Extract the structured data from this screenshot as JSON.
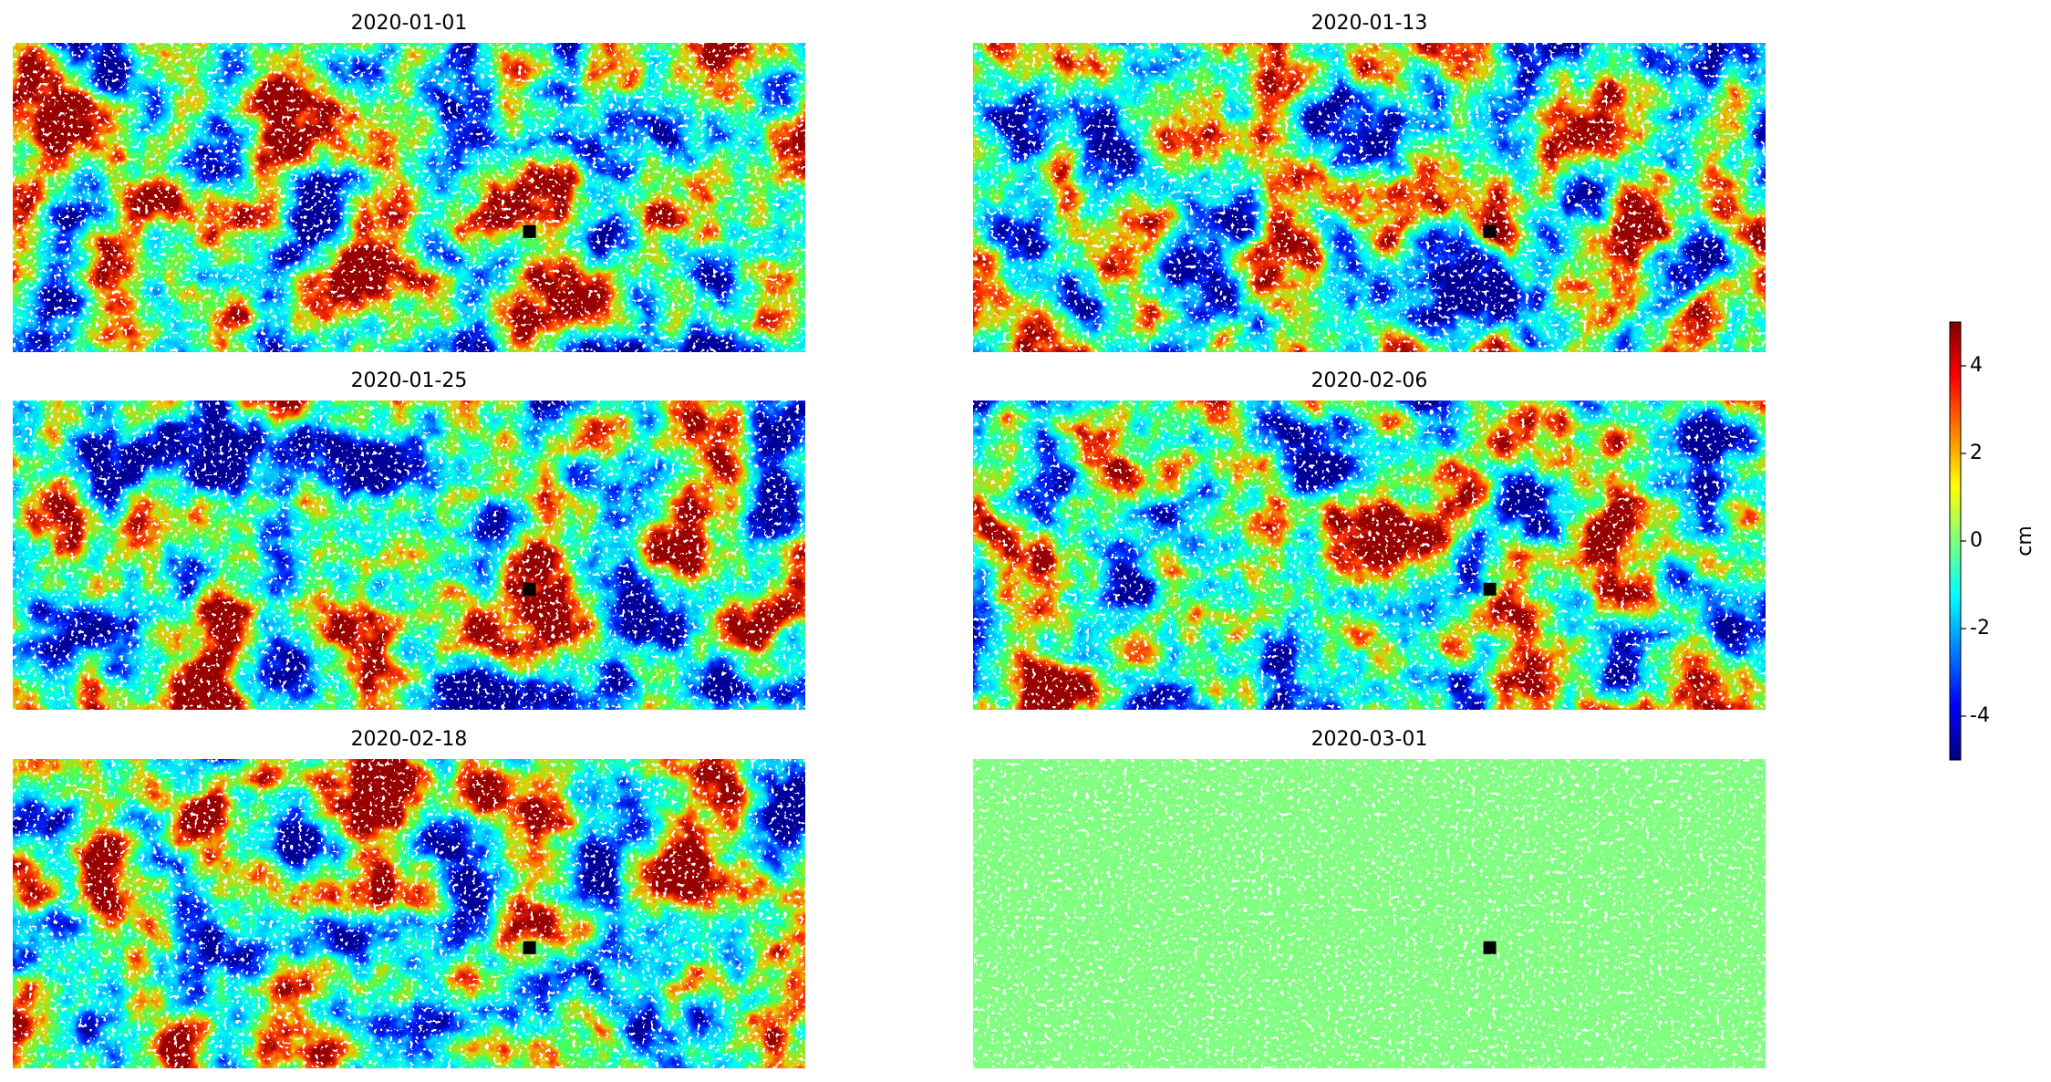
{
  "chart_data": {
    "type": "heatmap",
    "titles": [
      "2020-01-01",
      "2020-01-13",
      "2020-01-25",
      "2020-02-06",
      "2020-02-18",
      "2020-03-01"
    ],
    "colorbar": {
      "label": "cm",
      "lim": [
        -5,
        5
      ],
      "ticks": [
        -4,
        -2,
        0,
        2,
        4
      ],
      "colormap": "jet"
    }
  }
}
